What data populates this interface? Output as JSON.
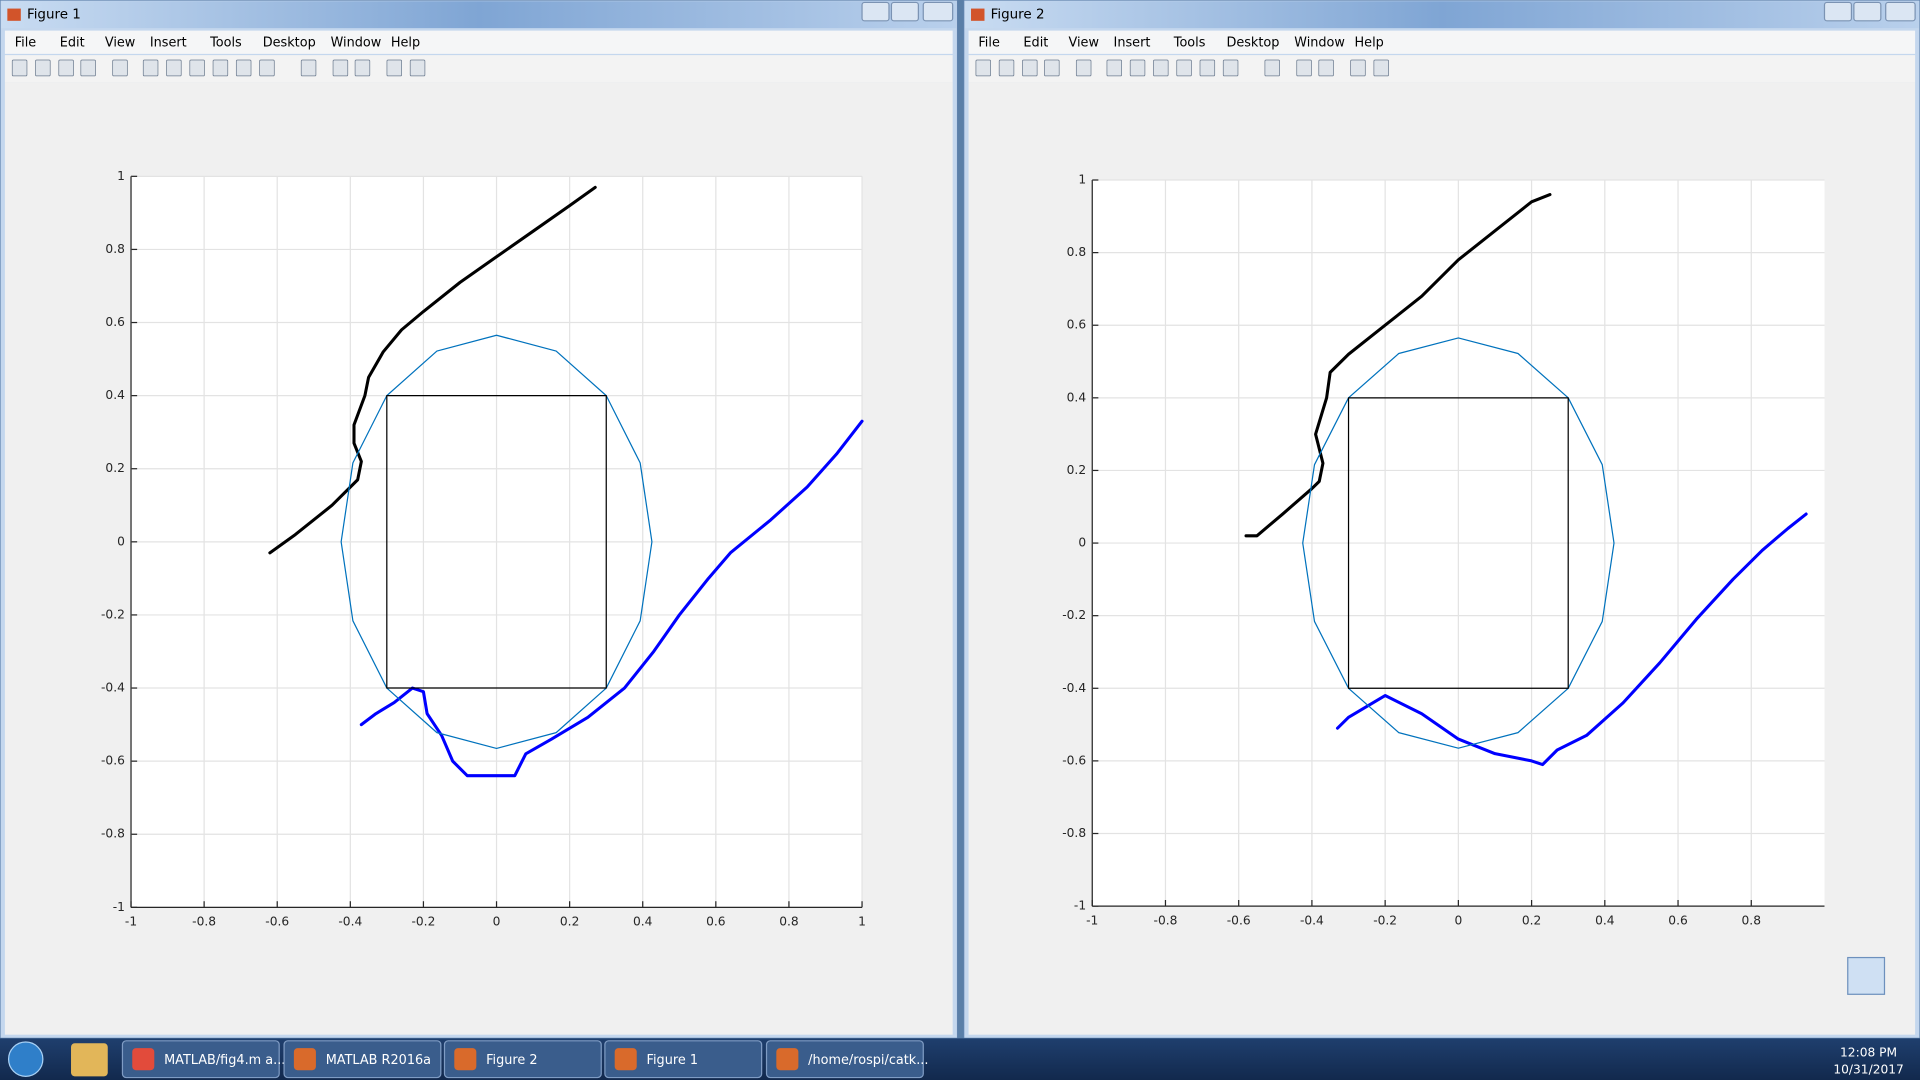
{
  "windows": [
    {
      "title": "Figure 1",
      "menu": [
        "File",
        "Edit",
        "View",
        "Insert",
        "Tools",
        "Desktop",
        "Window",
        "Help"
      ]
    },
    {
      "title": "Figure 2",
      "menu": [
        "File",
        "Edit",
        "View",
        "Insert",
        "Tools",
        "Desktop",
        "Window",
        "Help"
      ]
    }
  ],
  "chart_data": [
    {
      "type": "line",
      "xlim": [
        -1,
        1
      ],
      "ylim": [
        -1,
        1
      ],
      "xticks": [
        -1,
        -0.8,
        -0.6,
        -0.4,
        -0.2,
        0,
        0.2,
        0.4,
        0.6,
        0.8,
        1
      ],
      "yticks": [
        -1,
        -0.8,
        -0.6,
        -0.4,
        -0.2,
        0,
        0.2,
        0.4,
        0.6,
        0.8,
        1
      ],
      "grid": true,
      "series": [
        {
          "color": "#000000",
          "line_width": 2.5,
          "x": [
            -0.62,
            -0.55,
            -0.45,
            -0.38,
            -0.37,
            -0.39,
            -0.39,
            -0.36,
            -0.35,
            -0.31,
            -0.26,
            -0.2,
            -0.1,
            0,
            0.1,
            0.2,
            0.27
          ],
          "values": [
            -0.03,
            0.02,
            0.1,
            0.17,
            0.22,
            0.27,
            0.32,
            0.4,
            0.45,
            0.52,
            0.58,
            0.63,
            0.71,
            0.78,
            0.85,
            0.92,
            0.97
          ]
        },
        {
          "color": "#0000ff",
          "line_width": 2.5,
          "x": [
            -0.37,
            -0.33,
            -0.28,
            -0.23,
            -0.2,
            -0.19,
            -0.15,
            -0.12,
            -0.08,
            -0.02,
            0.05,
            0.08,
            0.15,
            0.25,
            0.35,
            0.43,
            0.5,
            0.58,
            0.64,
            0.75,
            0.85,
            0.93,
            1.0
          ],
          "values": [
            -0.5,
            -0.47,
            -0.44,
            -0.4,
            -0.41,
            -0.47,
            -0.53,
            -0.6,
            -0.64,
            -0.64,
            -0.64,
            -0.58,
            -0.54,
            -0.48,
            -0.4,
            -0.3,
            -0.2,
            -0.1,
            -0.03,
            0.06,
            0.15,
            0.24,
            0.33
          ]
        },
        {
          "color": "#0072bd",
          "line_width": 1,
          "x": [
            0.425,
            0.393,
            0.3,
            0.163,
            0,
            -0.163,
            -0.3,
            -0.393,
            -0.425,
            -0.393,
            -0.3,
            -0.163,
            0,
            0.163,
            0.3,
            0.393,
            0.425
          ],
          "values": [
            0,
            0.216,
            0.4,
            0.522,
            0.565,
            0.522,
            0.4,
            0.216,
            0,
            -0.216,
            -0.4,
            -0.522,
            -0.565,
            -0.522,
            -0.4,
            -0.216,
            0
          ]
        },
        {
          "color": "#000000",
          "line_width": 1,
          "x": [
            -0.3,
            0.3,
            0.3,
            -0.3,
            -0.3
          ],
          "values": [
            0.4,
            0.4,
            -0.4,
            -0.4,
            0.4
          ]
        }
      ]
    },
    {
      "type": "line",
      "xlim": [
        -1,
        1
      ],
      "ylim": [
        -1,
        1
      ],
      "xticks": [
        -1,
        -0.8,
        -0.6,
        -0.4,
        -0.2,
        0,
        0.2,
        0.4,
        0.6,
        0.8
      ],
      "yticks": [
        -1,
        -0.8,
        -0.6,
        -0.4,
        -0.2,
        0,
        0.2,
        0.4,
        0.6,
        0.8,
        1
      ],
      "grid": true,
      "series": [
        {
          "color": "#000000",
          "line_width": 2.5,
          "x": [
            -0.58,
            -0.55,
            -0.48,
            -0.4,
            -0.38,
            -0.37,
            -0.39,
            -0.36,
            -0.35,
            -0.3,
            -0.2,
            -0.1,
            0,
            0.1,
            0.2,
            0.25
          ],
          "values": [
            0.02,
            0.02,
            0.08,
            0.15,
            0.17,
            0.22,
            0.3,
            0.4,
            0.47,
            0.52,
            0.6,
            0.68,
            0.78,
            0.86,
            0.94,
            0.96
          ]
        },
        {
          "color": "#0000ff",
          "line_width": 2.5,
          "x": [
            -0.33,
            -0.3,
            -0.2,
            -0.1,
            0,
            0.1,
            0.2,
            0.23,
            0.27,
            0.35,
            0.45,
            0.55,
            0.65,
            0.75,
            0.83,
            0.9,
            0.95
          ],
          "values": [
            -0.51,
            -0.48,
            -0.42,
            -0.47,
            -0.54,
            -0.58,
            -0.6,
            -0.61,
            -0.57,
            -0.53,
            -0.44,
            -0.33,
            -0.21,
            -0.1,
            -0.02,
            0.04,
            0.08
          ]
        },
        {
          "color": "#0072bd",
          "line_width": 1,
          "x": [
            0.425,
            0.393,
            0.3,
            0.163,
            0,
            -0.163,
            -0.3,
            -0.393,
            -0.425,
            -0.393,
            -0.3,
            -0.163,
            0,
            0.163,
            0.3,
            0.393,
            0.425
          ],
          "values": [
            0,
            0.216,
            0.4,
            0.522,
            0.565,
            0.522,
            0.4,
            0.216,
            0,
            -0.216,
            -0.4,
            -0.522,
            -0.565,
            -0.522,
            -0.4,
            -0.216,
            0
          ]
        },
        {
          "color": "#000000",
          "line_width": 1,
          "x": [
            -0.3,
            0.3,
            0.3,
            -0.3,
            -0.3
          ],
          "values": [
            0.4,
            0.4,
            -0.4,
            -0.4,
            0.4
          ]
        }
      ]
    }
  ],
  "taskbar": {
    "items": [
      "MATLAB/fig4.m a...",
      "MATLAB R2016a",
      "Figure 2",
      "Figure 1",
      "/home/rospi/catk..."
    ],
    "time": "12:08 PM",
    "date": "10/31/2017"
  }
}
